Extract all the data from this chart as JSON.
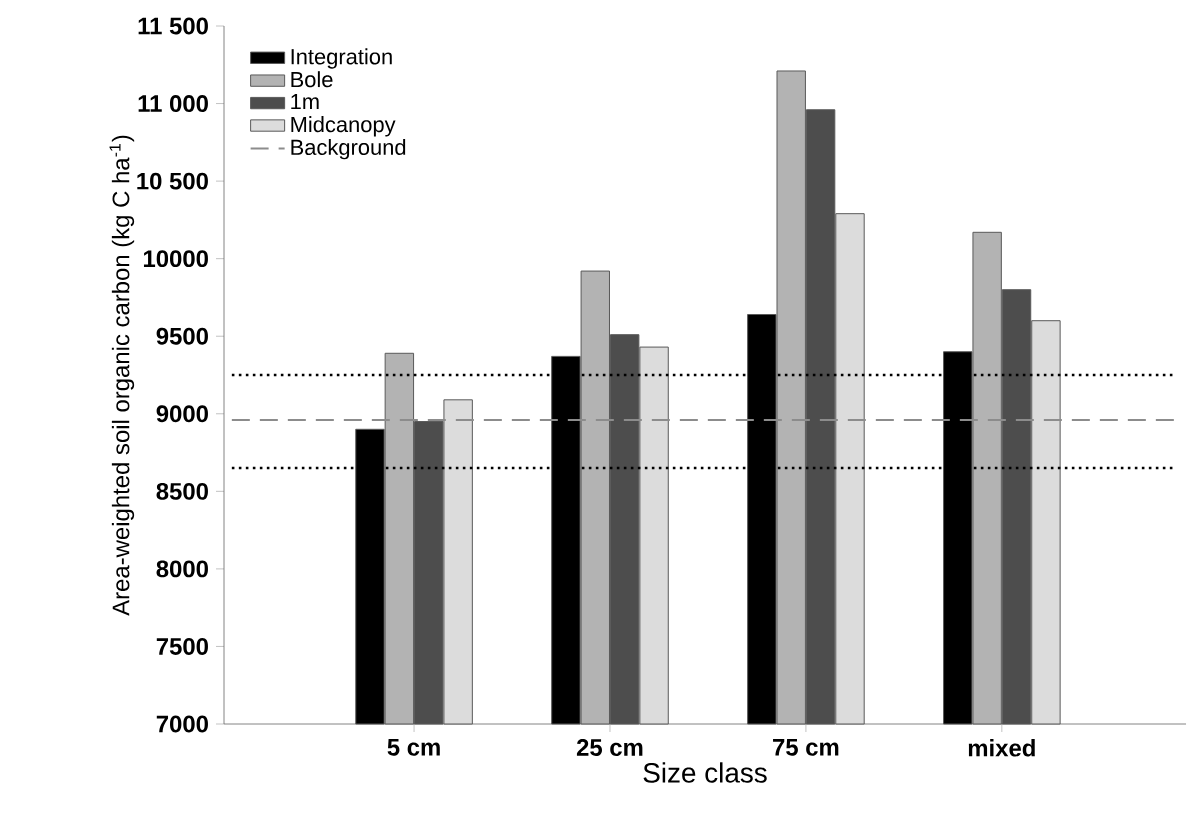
{
  "chart_data": {
    "type": "bar",
    "xlabel": "Size class",
    "ylabel": "Area-weighted soil organic carbon (kg C ha$^{-1}$)",
    "categories": [
      "5 cm",
      "25 cm",
      "75 cm",
      "mixed"
    ],
    "series": [
      {
        "name": "Integration",
        "color": "#000000",
        "values": [
          8900,
          9370,
          9640,
          9400
        ]
      },
      {
        "name": "Bole",
        "color": "#b3b3b3",
        "values": [
          9390,
          9920,
          11210,
          10170
        ]
      },
      {
        "name": "1m",
        "color": "#4d4d4d",
        "values": [
          8950,
          9510,
          10960,
          9800
        ]
      },
      {
        "name": "Midcanopy",
        "color": "#dcdcdc",
        "values": [
          9090,
          9430,
          10290,
          9600
        ]
      }
    ],
    "ylim": [
      7000,
      11500
    ],
    "yticks": [
      7000,
      7500,
      8000,
      8500,
      9000,
      9500,
      10000,
      {
        "value": 10500,
        "label": "10 500"
      },
      {
        "value": 11000,
        "label": "11 000"
      },
      {
        "value": 11500,
        "label": "11 500"
      }
    ],
    "ref_lines": [
      {
        "axis": "y",
        "value": 9250,
        "label": null,
        "line_style": "dotted",
        "color": "#000000"
      },
      {
        "axis": "y",
        "value": 8960,
        "label": "Background",
        "line_style": "dashed",
        "color": "#8c8c8c"
      },
      {
        "axis": "y",
        "value": 8650,
        "label": null,
        "line_style": "dotted",
        "color": "#000000"
      }
    ],
    "legend": "top left",
    "grid": false
  }
}
